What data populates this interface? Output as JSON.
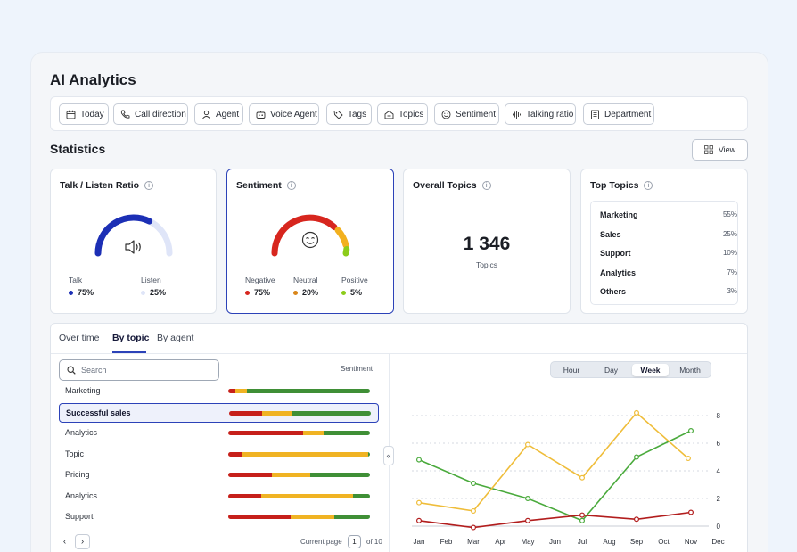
{
  "page": {
    "title": "AI Analytics",
    "statistics_title": "Statistics",
    "view_label": "View"
  },
  "filters": [
    {
      "label": "Today",
      "icon": "calendar-icon"
    },
    {
      "label": "Call direction",
      "icon": "phone-icon"
    },
    {
      "label": "Agent",
      "icon": "user-icon"
    },
    {
      "label": "Voice Agent",
      "icon": "bot-icon"
    },
    {
      "label": "Tags",
      "icon": "tag-icon"
    },
    {
      "label": "Topics",
      "icon": "topics-icon"
    },
    {
      "label": "Sentiment",
      "icon": "smile-icon"
    },
    {
      "label": "Talking ratio",
      "icon": "waveform-icon"
    },
    {
      "label": "Department",
      "icon": "building-icon"
    }
  ],
  "cards": {
    "talk_listen": {
      "title": "Talk / Listen Ratio",
      "talk_label": "Talk",
      "talk_value": "75%",
      "listen_label": "Listen",
      "listen_value": "25%",
      "talk_fraction": 0.75,
      "colors": {
        "talk": "#1c2fb5",
        "listen": "#dfe5f8"
      }
    },
    "sentiment": {
      "title": "Sentiment",
      "negative_label": "Negative",
      "negative_value": "75%",
      "neutral_label": "Neutral",
      "neutral_value": "20%",
      "positive_label": "Positive",
      "positive_value": "5%",
      "colors": {
        "negative": "#d7261e",
        "neutral": "#f2b01e",
        "positive": "#8ccc1a"
      }
    },
    "overall_topics": {
      "title": "Overall Topics",
      "value": "1 346",
      "sub": "Topics"
    },
    "top_topics": {
      "title": "Top Topics",
      "items": [
        {
          "name": "Marketing",
          "value": "55%"
        },
        {
          "name": "Sales",
          "value": "25%"
        },
        {
          "name": "Support",
          "value": "10%"
        },
        {
          "name": "Analytics",
          "value": "7%"
        },
        {
          "name": "Others",
          "value": "3%"
        }
      ]
    }
  },
  "tabs": [
    "Over time",
    "By topic",
    "By agent"
  ],
  "active_tab": "By topic",
  "search": {
    "placeholder": "Search"
  },
  "sentiment_header": "Sentiment",
  "topic_rows": [
    {
      "label": "Marketing",
      "neg": 5,
      "neu": 8,
      "pos": 87
    },
    {
      "label": "Successful sales",
      "neg": 23,
      "neu": 21,
      "pos": 56,
      "selected": true
    },
    {
      "label": "Analytics",
      "neg": 53,
      "neu": 14,
      "pos": 33
    },
    {
      "label": "Topic",
      "neg": 10,
      "neu": 89,
      "pos": 1
    },
    {
      "label": "Pricing",
      "neg": 31,
      "neu": 27,
      "pos": 42
    },
    {
      "label": "Analytics",
      "neg": 23,
      "neu": 65,
      "pos": 12
    },
    {
      "label": "Support",
      "neg": 44,
      "neu": 31,
      "pos": 25
    }
  ],
  "pagination": {
    "current_label": "Current page",
    "current": "1",
    "total_label": "of 10"
  },
  "period": {
    "options": [
      "Hour",
      "Day",
      "Week",
      "Month"
    ],
    "active": "Week"
  },
  "chart_data": {
    "type": "line",
    "x": [
      "Jan",
      "Feb",
      "Mar",
      "Apr",
      "May",
      "Jun",
      "Jul",
      "Aug",
      "Sep",
      "Oct",
      "Nov",
      "Dec"
    ],
    "ylim": [
      0,
      8
    ],
    "yticks": [
      0,
      2,
      4,
      6,
      8
    ],
    "grid": true,
    "series": [
      {
        "color": "#4aaa3c",
        "points": [
          [
            0,
            4.8
          ],
          [
            2,
            3.1
          ],
          [
            4,
            2.0
          ],
          [
            6,
            0.4
          ],
          [
            8,
            5.0
          ],
          [
            10,
            6.9
          ]
        ]
      },
      {
        "color": "#efbd3a",
        "points": [
          [
            0,
            1.7
          ],
          [
            2,
            1.1
          ],
          [
            4,
            5.9
          ],
          [
            6,
            3.5
          ],
          [
            8,
            8.2
          ],
          [
            9.9,
            4.9
          ]
        ]
      },
      {
        "color": "#b21d1d",
        "points": [
          [
            0,
            0.4
          ],
          [
            2,
            -0.1
          ],
          [
            4,
            0.4
          ],
          [
            6,
            0.8
          ],
          [
            8,
            0.5
          ],
          [
            10,
            1.0
          ]
        ]
      }
    ]
  }
}
